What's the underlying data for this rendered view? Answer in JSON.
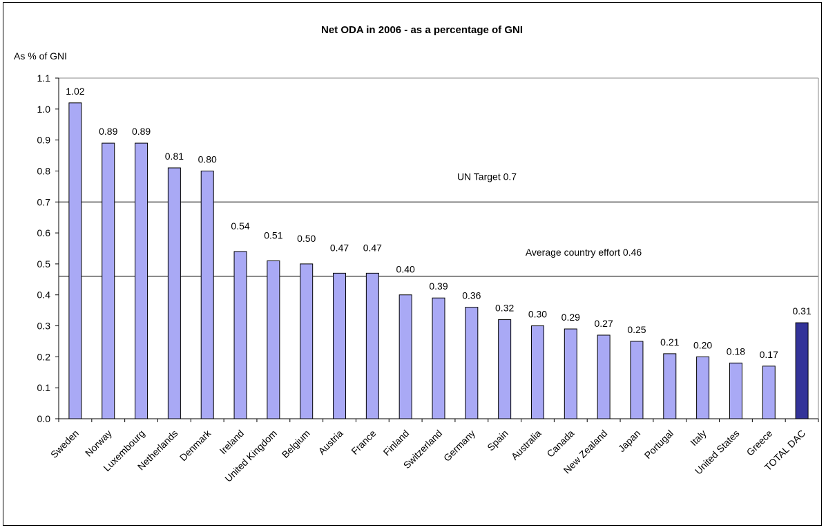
{
  "chart_data": {
    "type": "bar",
    "title": "Net ODA in 2006 - as a percentage of GNI",
    "ylabel": "As % of GNI",
    "xlabel": "",
    "ylim": [
      0,
      1.1
    ],
    "yticks": [
      "0.0",
      "0.1",
      "0.2",
      "0.3",
      "0.4",
      "0.5",
      "0.6",
      "0.7",
      "0.8",
      "0.9",
      "1.0",
      "1.1"
    ],
    "grid": false,
    "categories": [
      "Sweden",
      "Norway",
      "Luxembourg",
      "Netherlands",
      "Denmark",
      "Ireland",
      "United Kingdom",
      "Belgium",
      "Austria",
      "France",
      "Finland",
      "Switzerland",
      "Germany",
      "Spain",
      "Australia",
      "Canada",
      "New Zealand",
      "Japan",
      "Portugal",
      "Italy",
      "United States",
      "Greece",
      "TOTAL DAC"
    ],
    "values": [
      1.02,
      0.89,
      0.89,
      0.81,
      0.8,
      0.54,
      0.51,
      0.5,
      0.47,
      0.47,
      0.4,
      0.39,
      0.36,
      0.32,
      0.3,
      0.29,
      0.27,
      0.25,
      0.21,
      0.2,
      0.18,
      0.17,
      0.31
    ],
    "value_labels": [
      "1.02",
      "0.89",
      "0.89",
      "0.81",
      "0.80",
      "0.54",
      "0.51",
      "0.50",
      "0.47",
      "0.47",
      "0.40",
      "0.39",
      "0.36",
      "0.32",
      "0.30",
      "0.29",
      "0.27",
      "0.25",
      "0.21",
      "0.20",
      "0.18",
      "0.17",
      "0.31"
    ],
    "highlight_index": 22,
    "colors": {
      "bar": "#a9a9f5",
      "highlight": "#333399",
      "edge": "#000000"
    },
    "reference_lines": [
      {
        "value": 0.7,
        "label": "UN Target 0.7"
      },
      {
        "value": 0.46,
        "label": "Average country effort 0.46"
      }
    ]
  }
}
